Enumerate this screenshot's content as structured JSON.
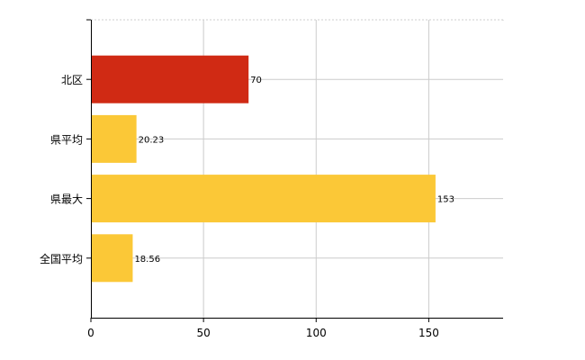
{
  "chart_data": {
    "type": "bar",
    "orientation": "horizontal",
    "categories": [
      "北区",
      "県平均",
      "県最大",
      "全国平均"
    ],
    "values": [
      70,
      20.23,
      153,
      18.56
    ],
    "value_labels": [
      "70",
      "20.23",
      "153",
      "18.56"
    ],
    "colors": [
      "#d02a14",
      "#fbc837",
      "#fbc837",
      "#fbc837"
    ],
    "xlim": [
      0,
      183
    ],
    "xticks": [
      0,
      50,
      100,
      150
    ],
    "xtick_labels": [
      "0",
      "50",
      "100",
      "150"
    ],
    "grid": true,
    "title": "",
    "xlabel": "",
    "ylabel": ""
  }
}
